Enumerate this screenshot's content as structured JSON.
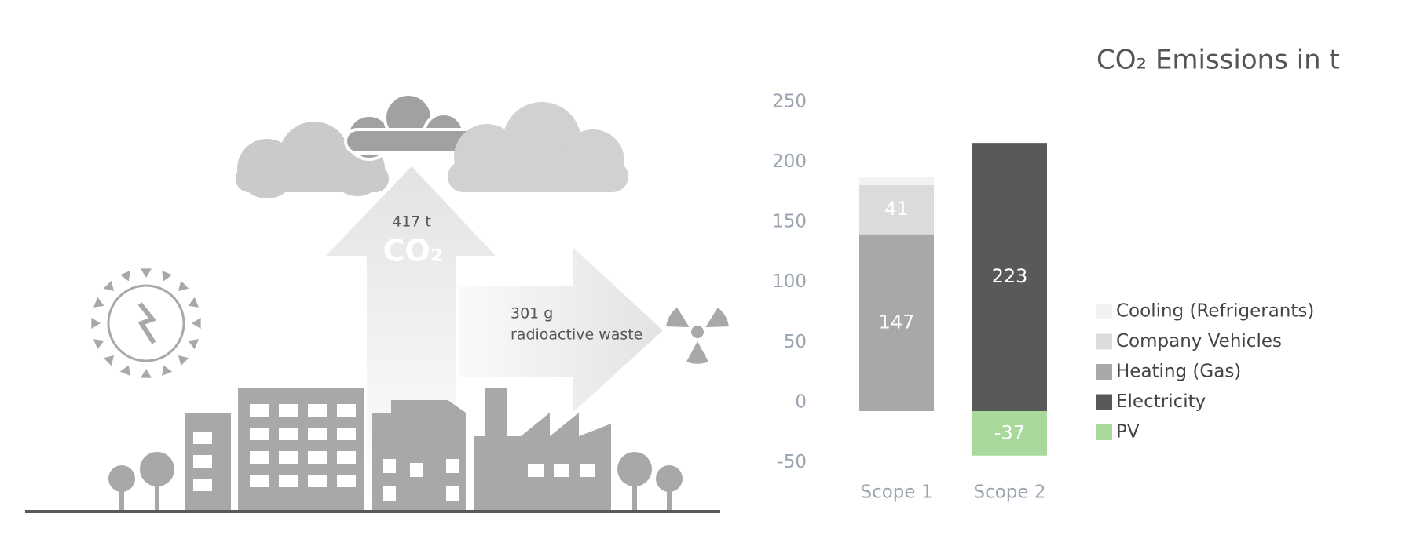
{
  "infographic": {
    "co2_amount": "417 t",
    "co2_label": "CO₂",
    "waste_amount": "301 g",
    "waste_label": "radioactive waste"
  },
  "chart_data": {
    "type": "stacked_bar",
    "title": "CO₂ Emissions in t",
    "categories": [
      "Scope 1",
      "Scope 2"
    ],
    "series": [
      {
        "name": "Cooling (Refrigerants)",
        "color": "#f2f2f2",
        "values": [
          7,
          null
        ]
      },
      {
        "name": "Company Vehicles",
        "color": "#dcdcdd",
        "values": [
          41,
          null
        ]
      },
      {
        "name": "Heating (Gas)",
        "color": "#a7a8aa",
        "values": [
          147,
          null
        ]
      },
      {
        "name": "Electricity",
        "color": "#58595b",
        "values": [
          null,
          223
        ]
      },
      {
        "name": "PV",
        "color": "#a8d89a",
        "values": [
          null,
          -37
        ]
      }
    ],
    "ylim": [
      -50,
      250
    ],
    "yticks": [
      -50,
      0,
      50,
      100,
      150,
      200,
      250
    ],
    "grid": false,
    "legend": "right"
  }
}
